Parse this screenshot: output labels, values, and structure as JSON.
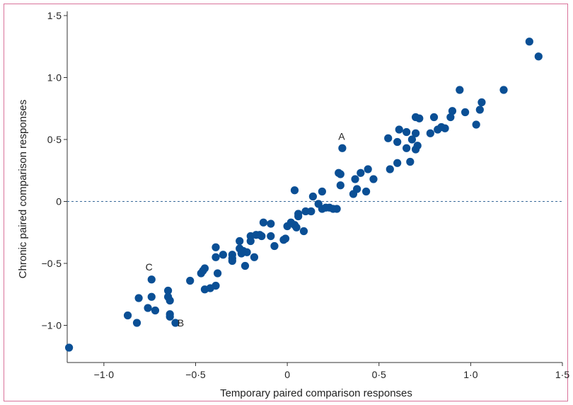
{
  "chart_data": {
    "type": "scatter",
    "xlabel": "Temporary paired comparison responses",
    "ylabel": "Chronic paired comparison responses",
    "xlim": [
      -1.2,
      1.5
    ],
    "ylim": [
      -1.3,
      1.5
    ],
    "x_ticks": [
      -1.0,
      -0.5,
      0,
      0.5,
      1.0,
      1.5
    ],
    "x_tick_labels": [
      "−1·0",
      "−0·5",
      "0",
      "0·5",
      "1·0",
      "1·5"
    ],
    "y_ticks": [
      1.5,
      1.0,
      0.5,
      0,
      -0.5,
      -1.0
    ],
    "y_tick_labels": [
      "1·5",
      "1·0",
      "0·5",
      "0",
      "−0·5",
      "−1·0"
    ],
    "reference_line": {
      "y": 0,
      "style": "dashed"
    },
    "point_color": "#0a4f95",
    "frame_color": "#d9739a",
    "annotations": [
      {
        "text": "A",
        "x": 0.3,
        "y": 0.43
      },
      {
        "text": "B",
        "x": -0.63,
        "y": -0.98
      },
      {
        "text": "C",
        "x": -0.75,
        "y": -0.62
      }
    ],
    "points": [
      [
        -1.19,
        -1.18
      ],
      [
        -0.87,
        -0.92
      ],
      [
        -0.82,
        -0.98
      ],
      [
        -0.81,
        -0.78
      ],
      [
        -0.76,
        -0.86
      ],
      [
        -0.74,
        -0.77
      ],
      [
        -0.72,
        -0.88
      ],
      [
        -0.65,
        -0.72
      ],
      [
        -0.65,
        -0.77
      ],
      [
        -0.64,
        -0.8
      ],
      [
        -0.64,
        -0.91
      ],
      [
        -0.64,
        -0.93
      ],
      [
        -0.61,
        -0.98
      ],
      [
        -0.74,
        -0.63
      ],
      [
        -0.53,
        -0.64
      ],
      [
        -0.47,
        -0.58
      ],
      [
        -0.46,
        -0.56
      ],
      [
        -0.45,
        -0.71
      ],
      [
        -0.45,
        -0.54
      ],
      [
        -0.42,
        -0.7
      ],
      [
        -0.39,
        -0.68
      ],
      [
        -0.38,
        -0.58
      ],
      [
        -0.39,
        -0.37
      ],
      [
        -0.39,
        -0.45
      ],
      [
        -0.35,
        -0.43
      ],
      [
        -0.3,
        -0.43
      ],
      [
        -0.3,
        -0.48
      ],
      [
        -0.3,
        -0.46
      ],
      [
        -0.26,
        -0.32
      ],
      [
        -0.26,
        -0.38
      ],
      [
        -0.25,
        -0.42
      ],
      [
        -0.24,
        -0.4
      ],
      [
        -0.23,
        -0.52
      ],
      [
        -0.22,
        -0.41
      ],
      [
        -0.2,
        -0.32
      ],
      [
        -0.2,
        -0.28
      ],
      [
        -0.18,
        -0.45
      ],
      [
        -0.17,
        -0.27
      ],
      [
        -0.15,
        -0.27
      ],
      [
        -0.14,
        -0.28
      ],
      [
        -0.13,
        -0.17
      ],
      [
        -0.09,
        -0.18
      ],
      [
        -0.09,
        -0.28
      ],
      [
        -0.07,
        -0.36
      ],
      [
        -0.02,
        -0.31
      ],
      [
        -0.01,
        -0.3
      ],
      [
        0.0,
        -0.2
      ],
      [
        0.02,
        -0.17
      ],
      [
        0.04,
        -0.19
      ],
      [
        0.05,
        -0.21
      ],
      [
        0.06,
        -0.12
      ],
      [
        0.06,
        -0.1
      ],
      [
        0.09,
        -0.24
      ],
      [
        0.1,
        -0.08
      ],
      [
        0.13,
        -0.08
      ],
      [
        0.04,
        0.09
      ],
      [
        0.14,
        0.04
      ],
      [
        0.17,
        -0.02
      ],
      [
        0.19,
        0.08
      ],
      [
        0.19,
        -0.06
      ],
      [
        0.21,
        -0.05
      ],
      [
        0.23,
        -0.05
      ],
      [
        0.25,
        -0.06
      ],
      [
        0.27,
        -0.06
      ],
      [
        0.28,
        0.23
      ],
      [
        0.29,
        0.22
      ],
      [
        0.29,
        0.13
      ],
      [
        0.3,
        0.43
      ],
      [
        0.36,
        0.06
      ],
      [
        0.37,
        0.18
      ],
      [
        0.38,
        0.1
      ],
      [
        0.4,
        0.23
      ],
      [
        0.43,
        0.08
      ],
      [
        0.44,
        0.26
      ],
      [
        0.47,
        0.18
      ],
      [
        0.55,
        0.51
      ],
      [
        0.56,
        0.26
      ],
      [
        0.6,
        0.31
      ],
      [
        0.61,
        0.58
      ],
      [
        0.6,
        0.48
      ],
      [
        0.65,
        0.56
      ],
      [
        0.65,
        0.43
      ],
      [
        0.67,
        0.32
      ],
      [
        0.68,
        0.5
      ],
      [
        0.7,
        0.68
      ],
      [
        0.7,
        0.55
      ],
      [
        0.7,
        0.42
      ],
      [
        0.71,
        0.45
      ],
      [
        0.72,
        0.67
      ],
      [
        0.78,
        0.55
      ],
      [
        0.8,
        0.68
      ],
      [
        0.82,
        0.58
      ],
      [
        0.84,
        0.6
      ],
      [
        0.86,
        0.59
      ],
      [
        0.89,
        0.68
      ],
      [
        0.9,
        0.73
      ],
      [
        0.94,
        0.9
      ],
      [
        0.97,
        0.72
      ],
      [
        1.03,
        0.62
      ],
      [
        1.05,
        0.74
      ],
      [
        1.06,
        0.8
      ],
      [
        1.18,
        0.9
      ],
      [
        1.32,
        1.29
      ],
      [
        1.37,
        1.17
      ]
    ]
  }
}
